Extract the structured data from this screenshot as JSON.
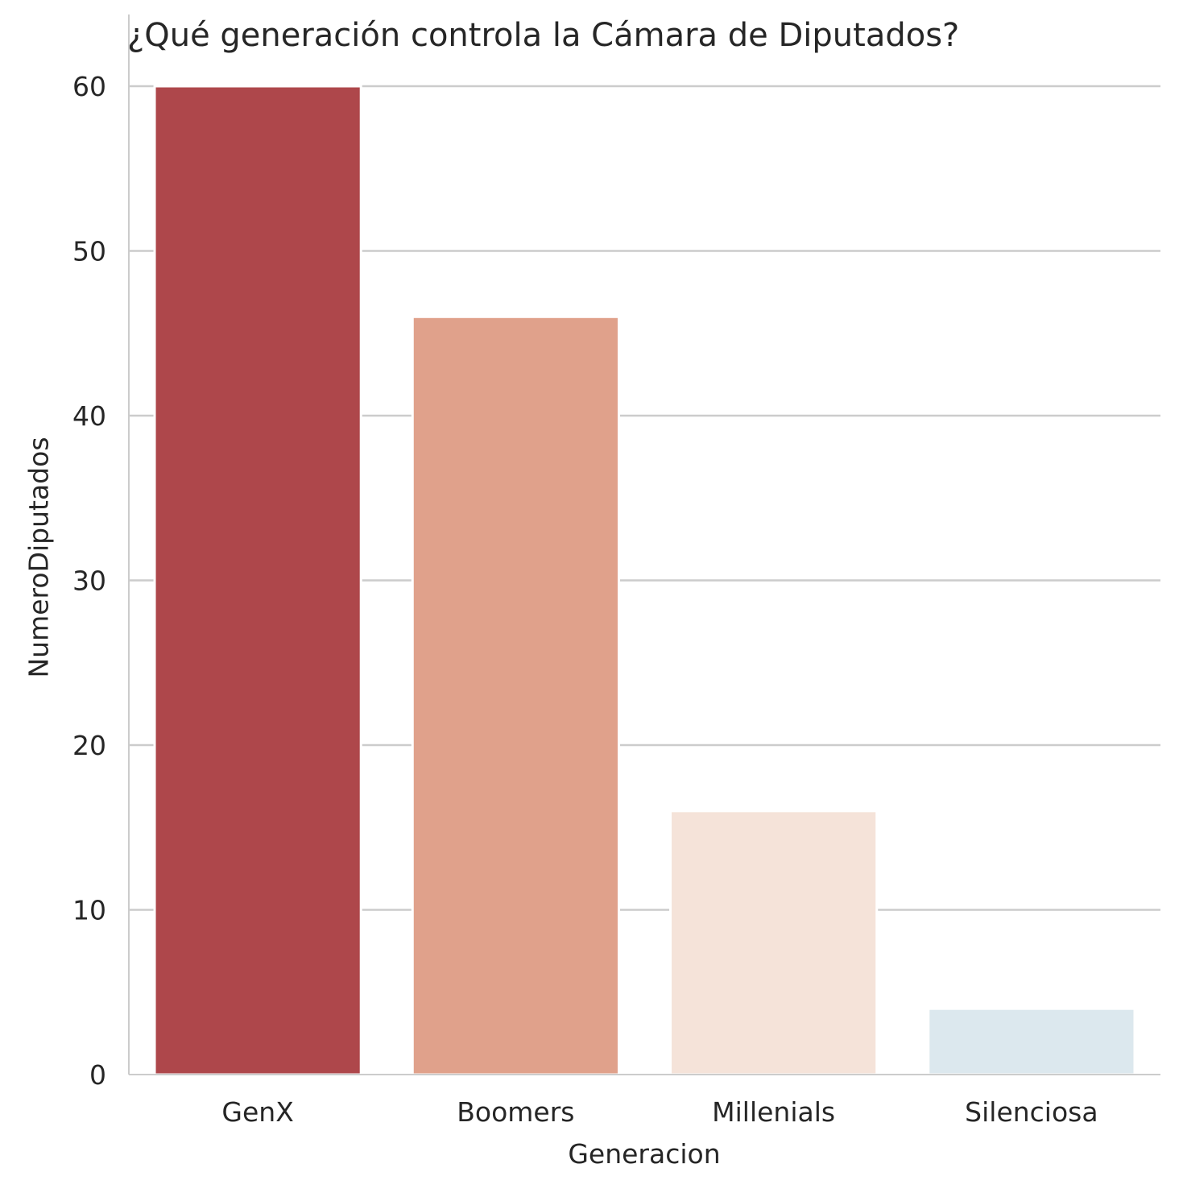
{
  "chart_data": {
    "type": "bar",
    "title": "¿Qué generación controla la Cámara de Diputados?",
    "xlabel": "Generacion",
    "ylabel": "NumeroDiputados",
    "categories": [
      "GenX",
      "Boomers",
      "Millenials",
      "Silenciosa"
    ],
    "values": [
      60,
      46,
      16,
      4
    ],
    "colors": [
      "#ae474b",
      "#e0a18b",
      "#f5e3d9",
      "#dce8ee"
    ],
    "ylim": [
      0,
      60
    ],
    "yticks": [
      0,
      10,
      20,
      30,
      40,
      50,
      60
    ],
    "grid": "horizontal",
    "legend": "none"
  }
}
